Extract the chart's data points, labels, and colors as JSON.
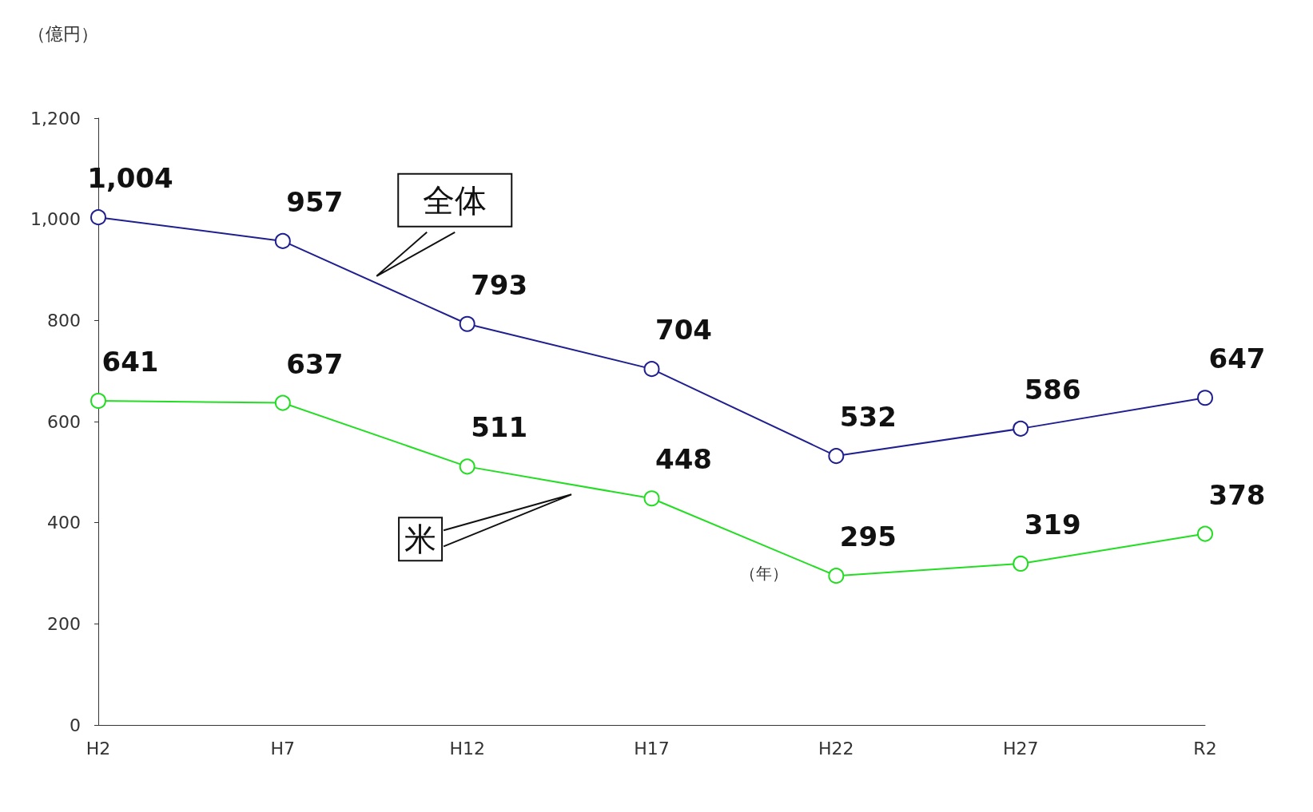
{
  "chart_data": {
    "type": "line",
    "ylabel": "（億円）",
    "xlabel": "（年）",
    "categories": [
      "H2",
      "H7",
      "H12",
      "H17",
      "H22",
      "H27",
      "R2"
    ],
    "series": [
      {
        "name": "全体",
        "color": "#1f1f8f",
        "values": [
          1004,
          957,
          793,
          704,
          532,
          586,
          647
        ],
        "value_labels": [
          "1,004",
          "957",
          "793",
          "704",
          "532",
          "586",
          "647"
        ]
      },
      {
        "name": "米",
        "color": "#22dd22",
        "values": [
          641,
          637,
          511,
          448,
          295,
          319,
          378
        ],
        "value_labels": [
          "641",
          "637",
          "511",
          "448",
          "295",
          "319",
          "378"
        ]
      }
    ],
    "ylim": [
      0,
      1200
    ],
    "yticks": [
      0,
      200,
      400,
      600,
      800,
      {
        "value": 1000,
        "label": "1,000"
      },
      {
        "value": 1200,
        "label": "1,200"
      }
    ],
    "grid": false,
    "legend": false,
    "marker": "circle",
    "line_style": "solid"
  }
}
